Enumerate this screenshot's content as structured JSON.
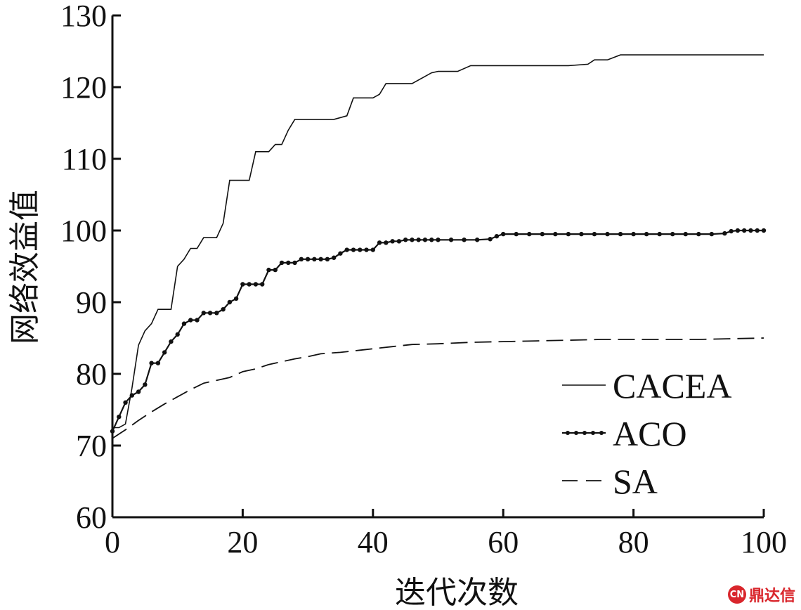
{
  "chart_data": {
    "type": "line",
    "xlabel": "迭代次数",
    "ylabel": "网络效益值",
    "xlim": [
      0,
      100
    ],
    "ylim": [
      60,
      130
    ],
    "xticks": [
      0,
      20,
      40,
      60,
      80,
      100
    ],
    "yticks": [
      60,
      70,
      80,
      90,
      100,
      110,
      120,
      130
    ],
    "grid": false,
    "legend_position": "bottom-right",
    "series": [
      {
        "name": "CACEA",
        "style": "solid",
        "x": [
          0,
          1,
          2,
          3,
          4,
          5,
          6,
          7,
          8,
          9,
          10,
          11,
          12,
          13,
          14,
          15,
          16,
          17,
          18,
          19,
          20,
          21,
          22,
          23,
          24,
          25,
          26,
          27,
          28,
          29,
          30,
          32,
          34,
          36,
          37,
          38,
          39,
          40,
          41,
          42,
          43,
          44,
          46,
          48,
          49,
          50,
          53,
          55,
          58,
          62,
          66,
          70,
          73,
          74,
          75,
          76,
          78,
          79,
          80,
          85,
          90,
          95,
          100
        ],
        "values": [
          72.5,
          72.5,
          73,
          78,
          84,
          86,
          87,
          89,
          89,
          89,
          95,
          96,
          97.5,
          97.5,
          99,
          99,
          99,
          101,
          107,
          107,
          107,
          107,
          111,
          111,
          111,
          112,
          112,
          114,
          115.5,
          115.5,
          115.5,
          115.5,
          115.5,
          116,
          118.5,
          118.5,
          118.5,
          118.5,
          119,
          120.5,
          120.5,
          120.5,
          120.5,
          121.5,
          122,
          122.2,
          122.2,
          123,
          123,
          123,
          123,
          123,
          123.2,
          123.8,
          123.8,
          123.8,
          124.5,
          124.5,
          124.5,
          124.5,
          124.5,
          124.5,
          124.5
        ]
      },
      {
        "name": "ACO",
        "style": "marker",
        "x": [
          0,
          1,
          2,
          3,
          4,
          5,
          6,
          7,
          8,
          9,
          10,
          11,
          12,
          13,
          14,
          15,
          16,
          17,
          18,
          19,
          20,
          21,
          22,
          23,
          24,
          25,
          26,
          27,
          28,
          29,
          30,
          31,
          32,
          33,
          34,
          35,
          36,
          37,
          38,
          39,
          40,
          41,
          42,
          43,
          44,
          45,
          46,
          47,
          48,
          49,
          50,
          52,
          54,
          56,
          58,
          59,
          60,
          62,
          64,
          66,
          68,
          70,
          72,
          74,
          76,
          78,
          80,
          82,
          84,
          86,
          88,
          90,
          92,
          94,
          95,
          96,
          97,
          98,
          99,
          100
        ],
        "values": [
          72,
          74,
          76,
          77,
          77.5,
          78.5,
          81.5,
          81.5,
          83,
          84.5,
          85.5,
          87,
          87.5,
          87.5,
          88.5,
          88.5,
          88.5,
          89,
          90,
          90.5,
          92.5,
          92.5,
          92.5,
          92.5,
          94.5,
          94.5,
          95.5,
          95.5,
          95.5,
          96,
          96,
          96,
          96,
          96,
          96.2,
          96.8,
          97.3,
          97.3,
          97.3,
          97.3,
          97.3,
          98.3,
          98.3,
          98.5,
          98.5,
          98.7,
          98.7,
          98.7,
          98.7,
          98.7,
          98.7,
          98.7,
          98.7,
          98.7,
          98.8,
          99.2,
          99.5,
          99.5,
          99.5,
          99.5,
          99.5,
          99.5,
          99.5,
          99.5,
          99.5,
          99.5,
          99.5,
          99.5,
          99.5,
          99.5,
          99.5,
          99.5,
          99.5,
          99.6,
          99.9,
          100,
          100,
          100,
          100,
          100
        ]
      },
      {
        "name": "SA",
        "style": "dashed",
        "x": [
          0,
          2,
          4,
          6,
          8,
          10,
          12,
          14,
          16,
          18,
          20,
          22,
          24,
          26,
          28,
          30,
          32,
          35,
          38,
          40,
          43,
          46,
          50,
          55,
          60,
          65,
          70,
          75,
          80,
          85,
          90,
          95,
          100
        ],
        "values": [
          71,
          72.2,
          73.5,
          74.7,
          75.8,
          76.8,
          77.8,
          78.7,
          79.1,
          79.5,
          80.3,
          80.7,
          81.3,
          81.7,
          82.1,
          82.4,
          82.8,
          83,
          83.3,
          83.5,
          83.8,
          84.1,
          84.2,
          84.4,
          84.5,
          84.6,
          84.7,
          84.8,
          84.8,
          84.8,
          84.8,
          84.9,
          85
        ]
      }
    ]
  },
  "watermark": {
    "logo": "CN",
    "text": "鼎达信"
  }
}
